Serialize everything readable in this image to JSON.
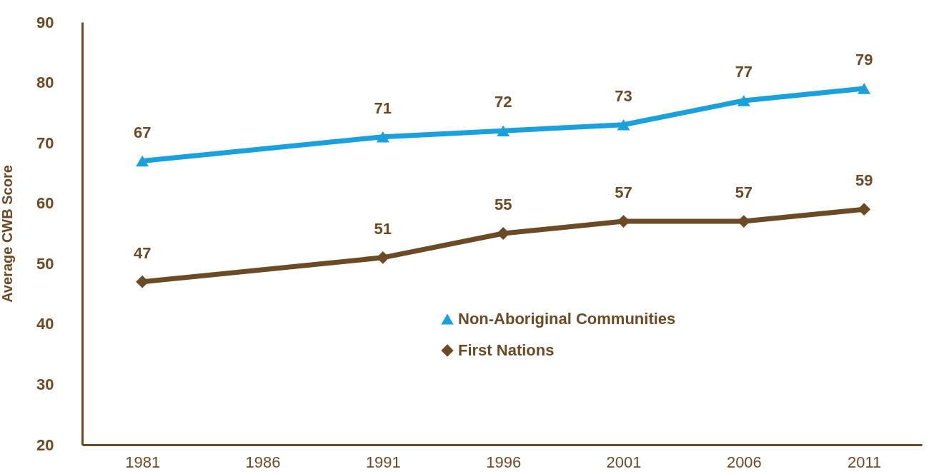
{
  "chart_data": {
    "type": "line",
    "ylabel": "Average CWB Score",
    "x": [
      1981,
      1991,
      1996,
      2001,
      2006,
      2011
    ],
    "xlim": [
      1978.5,
      2013.4
    ],
    "xticks": [
      1981,
      1986,
      1991,
      1996,
      2001,
      2006,
      2011
    ],
    "ylim": [
      20,
      90
    ],
    "yticks": [
      20,
      30,
      40,
      50,
      60,
      70,
      80,
      90
    ],
    "series": [
      {
        "name": "Non-Aboriginal Communities",
        "color": "#1aa0db",
        "marker": "triangle",
        "values": [
          67,
          71,
          72,
          73,
          77,
          79
        ]
      },
      {
        "name": "First Nations",
        "color": "#6b4a26",
        "marker": "diamond",
        "values": [
          47,
          51,
          55,
          57,
          57,
          59
        ]
      }
    ],
    "data_labels": true,
    "grid": false,
    "legend": "right"
  }
}
